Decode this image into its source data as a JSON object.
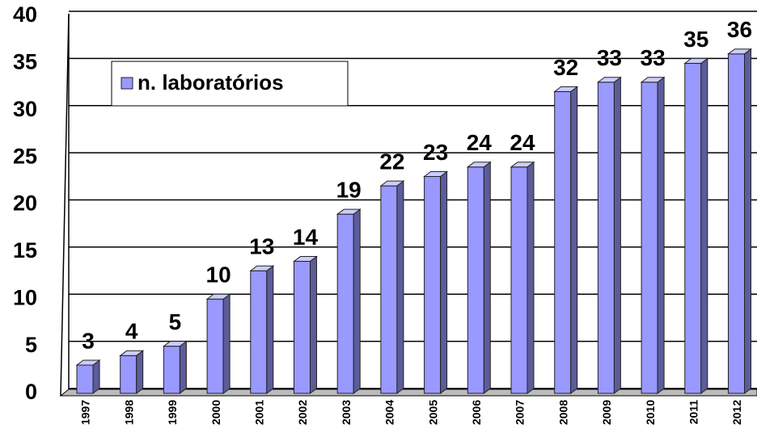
{
  "chart_data": {
    "type": "bar3d",
    "categories": [
      "1997",
      "1998",
      "1999",
      "2000",
      "2001",
      "2002",
      "2003",
      "2004",
      "2005",
      "2006",
      "2007",
      "2008",
      "2009",
      "2010",
      "2011",
      "2012"
    ],
    "series": [
      {
        "name": "n. laboratórios",
        "color": "#9999ff",
        "values": [
          3,
          4,
          5,
          10,
          13,
          14,
          19,
          22,
          23,
          24,
          24,
          32,
          33,
          33,
          35,
          36
        ]
      }
    ],
    "ylim": [
      0,
      40
    ],
    "yticks": [
      0,
      5,
      10,
      15,
      20,
      25,
      30,
      35,
      40
    ],
    "grid": true,
    "legend": "upper left"
  }
}
